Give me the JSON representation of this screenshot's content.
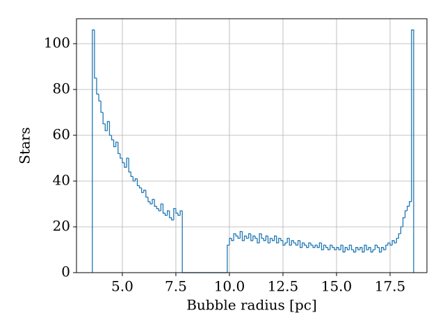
{
  "chart_data": {
    "type": "histogram",
    "xlabel": "Bubble radius [pc]",
    "ylabel": "Stars",
    "color": "#1f77b4",
    "grid": true,
    "bins": [
      3.6,
      3.7,
      3.8,
      3.9,
      4.0,
      4.1,
      4.2,
      4.3,
      4.4,
      4.5,
      4.6,
      4.7,
      4.8,
      4.9,
      5.0,
      5.1,
      5.2,
      5.3,
      5.4,
      5.5,
      5.6,
      5.7,
      5.8,
      5.9,
      6.0,
      6.1,
      6.2,
      6.3,
      6.4,
      6.5,
      6.6,
      6.7,
      6.8,
      6.9,
      7.0,
      7.1,
      7.2,
      7.3,
      7.4,
      7.5,
      7.6,
      7.7,
      7.8,
      7.9,
      8.0,
      8.1,
      8.2,
      8.3,
      8.4,
      8.5,
      8.6,
      8.7,
      8.8,
      8.9,
      9.0,
      9.1,
      9.2,
      9.3,
      9.4,
      9.5,
      9.6,
      9.7,
      9.8,
      9.9,
      10.0,
      10.1,
      10.2,
      10.3,
      10.4,
      10.5,
      10.6,
      10.7,
      10.8,
      10.9,
      11.0,
      11.1,
      11.2,
      11.3,
      11.4,
      11.5,
      11.6,
      11.7,
      11.8,
      11.9,
      12.0,
      12.1,
      12.2,
      12.3,
      12.4,
      12.5,
      12.6,
      12.7,
      12.8,
      12.9,
      13.0,
      13.1,
      13.2,
      13.3,
      13.4,
      13.5,
      13.6,
      13.7,
      13.8,
      13.9,
      14.0,
      14.1,
      14.2,
      14.3,
      14.4,
      14.5,
      14.6,
      14.7,
      14.8,
      14.9,
      15.0,
      15.1,
      15.2,
      15.3,
      15.4,
      15.5,
      15.6,
      15.7,
      15.8,
      15.9,
      16.0,
      16.1,
      16.2,
      16.3,
      16.4,
      16.5,
      16.6,
      16.7,
      16.8,
      16.9,
      17.0,
      17.1,
      17.2,
      17.3,
      17.4,
      17.5,
      17.6,
      17.7,
      17.8,
      17.9,
      18.0,
      18.1,
      18.2,
      18.3,
      18.4,
      18.5,
      18.6
    ],
    "values": [
      106,
      85,
      78,
      75,
      70,
      65,
      62,
      66,
      60,
      58,
      55,
      57,
      52,
      50,
      48,
      46,
      50,
      44,
      42,
      40,
      41,
      38,
      37,
      35,
      36,
      33,
      31,
      30,
      32,
      29,
      28,
      27,
      30,
      26,
      25,
      27,
      24,
      23,
      28,
      26,
      25,
      27,
      0,
      0,
      0,
      0,
      0,
      0,
      0,
      0,
      0,
      0,
      0,
      0,
      0,
      0,
      0,
      0,
      0,
      0,
      0,
      0,
      0,
      12,
      15,
      14,
      17,
      16,
      15,
      18,
      14,
      16,
      15,
      17,
      14,
      16,
      15,
      13,
      17,
      15,
      14,
      16,
      13,
      15,
      14,
      16,
      13,
      15,
      14,
      12,
      13,
      15,
      12,
      14,
      13,
      12,
      14,
      11,
      13,
      12,
      11,
      13,
      12,
      11,
      12,
      11,
      13,
      10,
      12,
      11,
      10,
      12,
      11,
      10,
      11,
      10,
      12,
      9,
      11,
      10,
      12,
      10,
      9,
      11,
      10,
      11,
      9,
      12,
      10,
      11,
      9,
      10,
      12,
      11,
      9,
      11,
      10,
      12,
      13,
      12,
      14,
      13,
      15,
      17,
      20,
      24,
      27,
      29,
      31,
      106
    ],
    "xlim": [
      2.86,
      19.22
    ],
    "ylim": [
      0,
      110.9
    ],
    "xticks": [
      {
        "value": 5,
        "label": "5.0"
      },
      {
        "value": 7.5,
        "label": "7.5"
      },
      {
        "value": 10,
        "label": "10.0"
      },
      {
        "value": 12.5,
        "label": "12.5"
      },
      {
        "value": 15,
        "label": "15.0"
      },
      {
        "value": 17.5,
        "label": "17.5"
      }
    ],
    "yticks": [
      0,
      20,
      40,
      60,
      80,
      100
    ]
  }
}
